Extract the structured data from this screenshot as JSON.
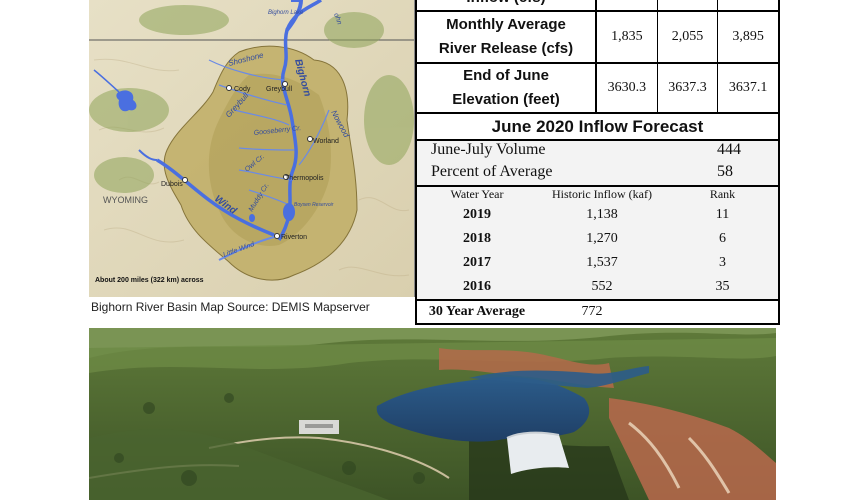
{
  "map": {
    "caption": "Bighorn River Basin Map Source: DEMIS Mapserver",
    "scale_text": "About 200 miles (322 km) across",
    "state_label": "WYOMING",
    "labels": {
      "bighorn_lake": "Bighorn Lake",
      "shoshone": "Shoshone",
      "greybull_river": "Greybull",
      "bighorn_river": "Bighorn",
      "nowood": "Nowood",
      "gooseberry": "Gooseberry Cr.",
      "owl": "Owl Cr.",
      "muddy": "Muddy Cr.",
      "wind": "Wind",
      "little_wind": "Little Wind",
      "boysen": "Boysen Reservoir",
      "cody": "Cody",
      "greybull_town": "Greybull",
      "worland": "Worland",
      "thermopolis": "Thermopolis",
      "dubois": "Dubois",
      "riverton": "Riverton",
      "corner_top": "ohn"
    }
  },
  "table": {
    "top_row_label": "Inflow (cfs)",
    "release_label": [
      "Monthly Average",
      "River Release (cfs)"
    ],
    "release_values": [
      "1,835",
      "2,055",
      "3,895"
    ],
    "elevation_label": [
      "End of June",
      "Elevation (feet)"
    ],
    "elevation_values": [
      "3630.3",
      "3637.3",
      "3637.1"
    ],
    "forecast_title": "June 2020 Inflow Forecast",
    "volume_label": "June-July Volume",
    "volume_value": "444",
    "percent_label": "Percent of Average",
    "percent_value": "58",
    "hist_headers": [
      "Water Year",
      "Historic Inflow (kaf)",
      "Rank"
    ],
    "hist_rows": [
      {
        "year": "2019",
        "inflow": "1,138",
        "rank": "11"
      },
      {
        "year": "2018",
        "inflow": "1,270",
        "rank": "6"
      },
      {
        "year": "2017",
        "inflow": "1,537",
        "rank": "3"
      },
      {
        "year": "2016",
        "inflow": "552",
        "rank": "35"
      }
    ],
    "avg_label": "30 Year Average",
    "avg_value": "772"
  }
}
